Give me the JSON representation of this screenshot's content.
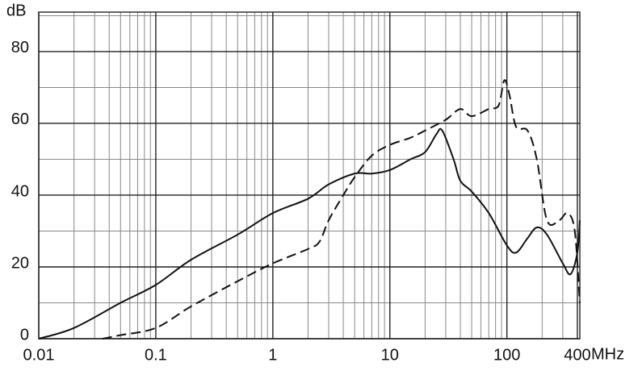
{
  "chart_data": {
    "type": "line",
    "xscale": "log",
    "grid": true,
    "x_label": "MHz",
    "y_label": "dB",
    "xlim": [
      0.01,
      420
    ],
    "ylim": [
      0,
      91
    ],
    "xticks": [
      0.01,
      0.1,
      1,
      10,
      100,
      400
    ],
    "x_minor_grid": [
      0.02,
      0.03,
      0.04,
      0.05,
      0.06,
      0.07,
      0.08,
      0.09,
      0.2,
      0.3,
      0.4,
      0.5,
      0.6,
      0.7,
      0.8,
      0.9,
      2,
      3,
      4,
      5,
      6,
      7,
      8,
      9,
      20,
      30,
      40,
      50,
      60,
      70,
      80,
      90,
      200,
      300
    ],
    "yticks": [
      0,
      20,
      40,
      60,
      80
    ],
    "y_minor_grid": [
      10,
      30,
      50,
      70,
      90
    ],
    "series": [
      {
        "color": "#111111",
        "dash": "solid",
        "x": [
          0.01,
          0.02,
          0.05,
          0.1,
          0.2,
          0.5,
          1,
          2,
          3,
          5,
          7,
          10,
          15,
          20,
          25,
          28,
          35,
          40,
          50,
          70,
          100,
          120,
          150,
          180,
          220,
          300,
          350,
          400,
          420
        ],
        "values": [
          0,
          3,
          10,
          15,
          22,
          29,
          35,
          39,
          43,
          46,
          46,
          47,
          50,
          52,
          57,
          58,
          50,
          44,
          41,
          35,
          26,
          24,
          28,
          31,
          29,
          21,
          18,
          24,
          33
        ]
      },
      {
        "color": "#111111",
        "dash": "dashed",
        "x": [
          0.035,
          0.05,
          0.1,
          0.2,
          0.5,
          1,
          2,
          2.5,
          3,
          4,
          5,
          7,
          10,
          15,
          20,
          30,
          40,
          50,
          70,
          85,
          95,
          105,
          120,
          150,
          180,
          220,
          280,
          330,
          380,
          420
        ],
        "values": [
          0,
          1,
          3,
          9,
          16,
          21,
          25,
          27,
          33,
          40,
          45,
          51,
          54,
          56,
          58,
          61,
          64,
          62,
          64,
          65,
          72,
          68,
          59,
          58,
          50,
          33,
          33,
          35,
          30,
          10
        ]
      }
    ]
  }
}
